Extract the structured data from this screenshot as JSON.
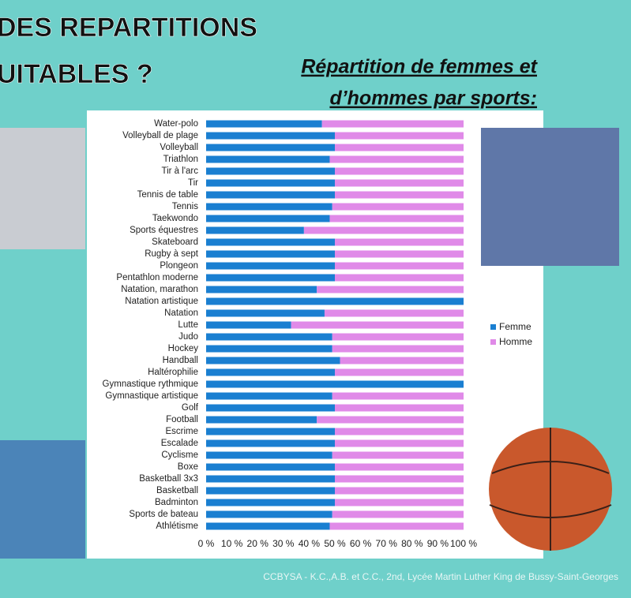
{
  "heading": [
    "DES REPARTITIONS",
    "UITABLES ?"
  ],
  "credit": "CCBYSA - K.C.,A.B. et C.C., 2nd, Lycée Martin Luther King de Bussy-Saint-Georges",
  "chart_data": {
    "type": "stacked-barh",
    "title": [
      "Répartition de femmes et",
      "d’hommes par sports:"
    ],
    "categories": [
      "Water-polo",
      "Volleyball de plage",
      "Volleyball",
      "Triathlon",
      "Tir à l'arc",
      "Tir",
      "Tennis de table",
      "Tennis",
      "Taekwondo",
      "Sports équestres",
      "Skateboard",
      "Rugby à sept",
      "Plongeon",
      "Pentathlon moderne",
      "Natation, marathon",
      "Natation artistique",
      "Natation",
      "Lutte",
      "Judo",
      "Hockey",
      "Handball",
      "Haltérophilie",
      "Gymnastique rythmique",
      "Gymnastique artistique",
      "Golf",
      "Football",
      "Escrime",
      "Escalade",
      "Cyclisme",
      "Boxe",
      "Basketball 3x3",
      "Basketball",
      "Badminton",
      "Sports de bateau",
      "Athlétisme"
    ],
    "series": [
      {
        "name": "Femme",
        "color": "#1a7fd1",
        "values": [
          45,
          50,
          50,
          48,
          50,
          50,
          50,
          49,
          48,
          38,
          50,
          50,
          50,
          50,
          43,
          100,
          46,
          33,
          49,
          49,
          52,
          50,
          100,
          49,
          50,
          43,
          50,
          50,
          49,
          50,
          50,
          50,
          50,
          49,
          48
        ]
      },
      {
        "name": "Homme",
        "color": "#e08ae8",
        "values": [
          55,
          50,
          50,
          52,
          50,
          50,
          50,
          51,
          52,
          62,
          50,
          50,
          50,
          50,
          57,
          0,
          54,
          67,
          51,
          51,
          48,
          50,
          0,
          51,
          50,
          57,
          50,
          50,
          51,
          50,
          50,
          50,
          50,
          51,
          52
        ]
      }
    ],
    "xlim": [
      0,
      100
    ],
    "xticks": [
      {
        "value": 0,
        "label": "0 %"
      },
      {
        "value": 10,
        "label": "10 %"
      },
      {
        "value": 20,
        "label": "20 %"
      },
      {
        "value": 30,
        "label": "30 %"
      },
      {
        "value": 40,
        "label": "40 %"
      },
      {
        "value": 50,
        "label": "50 %"
      },
      {
        "value": 60,
        "label": "60 %"
      },
      {
        "value": 70,
        "label": "70 %"
      },
      {
        "value": 80,
        "label": "80 %"
      },
      {
        "value": 90,
        "label": "90 %"
      },
      {
        "value": 100,
        "label": "100 %"
      }
    ],
    "legend": "right"
  }
}
